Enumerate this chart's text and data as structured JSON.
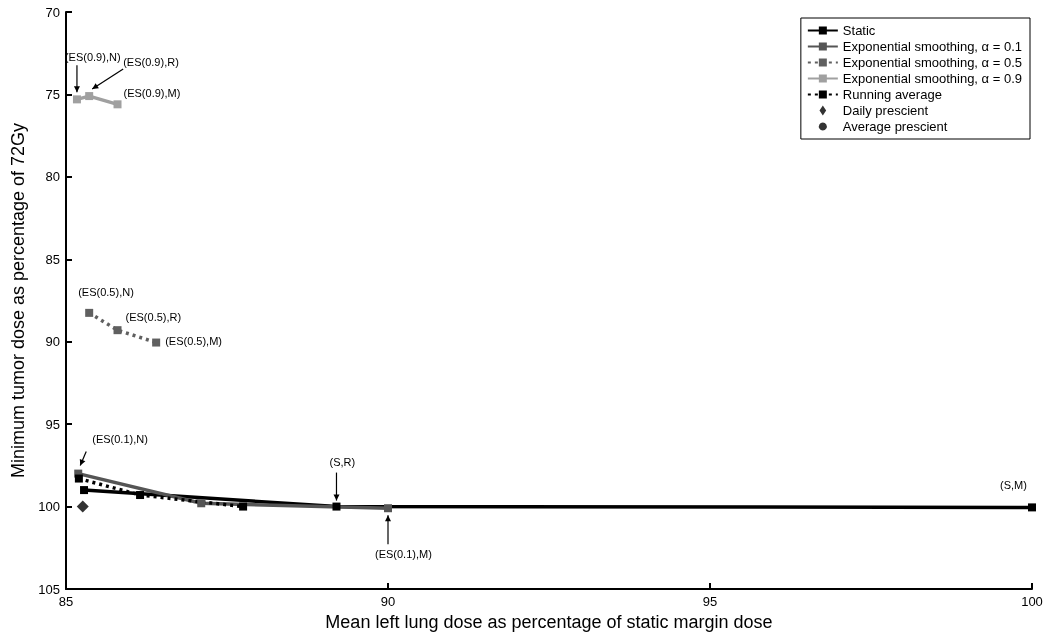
{
  "chart_data": {
    "type": "line",
    "xlabel": "Mean left lung dose as percentage of static margin dose",
    "ylabel": "Minimum tumor dose as percentage of 72Gy",
    "xlim": [
      85,
      100
    ],
    "xticks": [
      85,
      90,
      95,
      100
    ],
    "ylim": [
      105,
      70
    ],
    "yticks": [
      70,
      75,
      80,
      85,
      90,
      95,
      100,
      105
    ],
    "legend": "top right",
    "series": [
      {
        "name": "Static",
        "color": "#000000",
        "marker": "square",
        "line_style": "solid",
        "x": [
          85.28,
          89.2,
          100
        ],
        "values": [
          99.0,
          100.0,
          100.05
        ]
      },
      {
        "name": "Exponential smoothing, α = 0.1",
        "color": "#555555",
        "type": "line",
        "marker": "square",
        "line_style": "solid",
        "x": [
          85.19,
          87.1,
          90.0
        ],
        "values": [
          98.0,
          99.8,
          100.1
        ]
      },
      {
        "name": "Exponential smoothing, α = 0.5",
        "color": "#606060",
        "type": "line",
        "marker": "square",
        "line_style": "dotted",
        "x": [
          85.36,
          85.8,
          86.4
        ],
        "values": [
          88.25,
          89.3,
          90.05
        ]
      },
      {
        "name": "Exponential smoothing, α = 0.9",
        "color": "#a0a0a0",
        "type": "line",
        "marker": "square",
        "line_style": "solid",
        "x": [
          85.17,
          85.36,
          85.8
        ],
        "values": [
          75.3,
          75.1,
          75.6
        ]
      },
      {
        "name": "Running average",
        "color": "#000000",
        "type": "line",
        "marker": "square",
        "line_style": "dotted",
        "x": [
          85.2,
          86.15,
          87.75
        ],
        "values": [
          98.3,
          99.3,
          100.0
        ]
      },
      {
        "name": "Daily prescient",
        "color": "#000000",
        "type": "scatter",
        "marker": "diamond",
        "x": [
          85.26
        ],
        "values": [
          100.0
        ]
      },
      {
        "name": "Average prescient",
        "color": "#000000",
        "type": "scatter",
        "marker": "circle"
      }
    ],
    "annotations": [
      {
        "text": "(ES(0.9),N)",
        "x": 85.17,
        "y": 75.3
      },
      {
        "text": "(ES(0.9),R)",
        "x": 85.36,
        "y": 75.1
      },
      {
        "text": "(ES(0.9),M)",
        "x": 85.8,
        "y": 75.6
      },
      {
        "text": "(ES(0.5),N)",
        "x": 85.36,
        "y": 88.25
      },
      {
        "text": "(ES(0.5),R)",
        "x": 85.8,
        "y": 89.3
      },
      {
        "text": "(ES(0.5),M)",
        "x": 86.4,
        "y": 90.05
      },
      {
        "text": "(ES(0.1),N)",
        "x": 85.19,
        "y": 98.0
      },
      {
        "text": "(S,R)",
        "x": 89.2,
        "y": 100.0
      },
      {
        "text": "(ES(0.1),M)",
        "x": 90.0,
        "y": 100.1
      },
      {
        "text": "(S,M)",
        "x": 100,
        "y": 100.05
      }
    ]
  }
}
